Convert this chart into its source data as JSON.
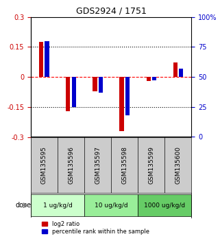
{
  "title": "GDS2924 / 1751",
  "samples": [
    "GSM135595",
    "GSM135596",
    "GSM135597",
    "GSM135598",
    "GSM135599",
    "GSM135600"
  ],
  "log2_ratio": [
    0.175,
    -0.17,
    -0.072,
    -0.27,
    -0.02,
    0.072
  ],
  "percentile_rank": [
    80,
    25,
    37,
    18,
    47,
    57
  ],
  "ylim_left": [
    -0.3,
    0.3
  ],
  "ylim_right": [
    0,
    100
  ],
  "yticks_left": [
    -0.3,
    -0.15,
    0,
    0.15,
    0.3
  ],
  "yticks_right": [
    0,
    25,
    50,
    75,
    100
  ],
  "ytick_labels_left": [
    "-0.3",
    "-0.15",
    "0",
    "0.15",
    "0.3"
  ],
  "ytick_labels_right": [
    "0",
    "25",
    "50",
    "75",
    "100%"
  ],
  "hlines": [
    0.15,
    0.0,
    -0.15
  ],
  "hline_styles": [
    "dotted",
    "dashed",
    "dotted"
  ],
  "hline_colors": [
    "black",
    "red",
    "black"
  ],
  "bar_color_red": "#cc0000",
  "bar_color_blue": "#0000cc",
  "bar_width": 0.35,
  "dose_groups": [
    {
      "label": "1 ug/kg/d",
      "start": 0,
      "end": 1,
      "color": "#ccffcc"
    },
    {
      "label": "10 ug/kg/d",
      "start": 2,
      "end": 3,
      "color": "#99ee99"
    },
    {
      "label": "1000 ug/kg/d",
      "start": 4,
      "end": 5,
      "color": "#66cc66"
    }
  ],
  "dose_label": "dose",
  "legend_red_label": "log2 ratio",
  "legend_blue_label": "percentile rank within the sample",
  "bg_color_plot": "#ffffff",
  "bg_color_figure": "#ffffff",
  "tick_label_color_left": "#cc0000",
  "tick_label_color_right": "#0000cc",
  "sample_bg_color": "#cccccc"
}
